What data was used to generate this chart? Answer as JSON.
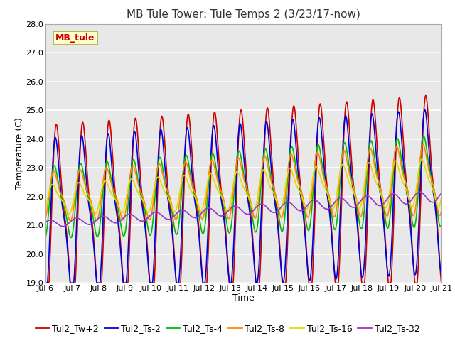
{
  "title": "MB Tule Tower: Tule Temps 2 (3/23/17-now)",
  "xlabel": "Time",
  "ylabel": "Temperature (C)",
  "ylim": [
    19.0,
    28.0
  ],
  "yticks": [
    19.0,
    20.0,
    21.0,
    22.0,
    23.0,
    24.0,
    25.0,
    26.0,
    27.0,
    28.0
  ],
  "xtick_labels": [
    "Jul 6",
    "Jul 7",
    "Jul 8",
    "Jul 9",
    "Jul 10",
    "Jul 11",
    "Jul 12",
    "Jul 13",
    "Jul 14",
    "Jul 15",
    "Jul 16",
    "Jul 17",
    "Jul 18",
    "Jul 19",
    "Jul 20",
    "Jul 21"
  ],
  "series": [
    {
      "label": "Tul2_Tw+2",
      "color": "#cc0000"
    },
    {
      "label": "Tul2_Ts-2",
      "color": "#0000dd"
    },
    {
      "label": "Tul2_Ts-4",
      "color": "#00bb00"
    },
    {
      "label": "Tul2_Ts-8",
      "color": "#ff8800"
    },
    {
      "label": "Tul2_Ts-16",
      "color": "#dddd00"
    },
    {
      "label": "Tul2_Ts-32",
      "color": "#9933cc"
    }
  ],
  "annotation_text": "MB_tule",
  "annotation_color": "#cc0000",
  "annotation_bg": "#ffffcc",
  "annotation_border": "#aaaa44",
  "plot_bg": "#e8e8e8",
  "grid_color": "#ffffff",
  "title_fontsize": 11,
  "axis_fontsize": 9,
  "tick_fontsize": 8,
  "legend_fontsize": 9,
  "line_width": 1.2
}
